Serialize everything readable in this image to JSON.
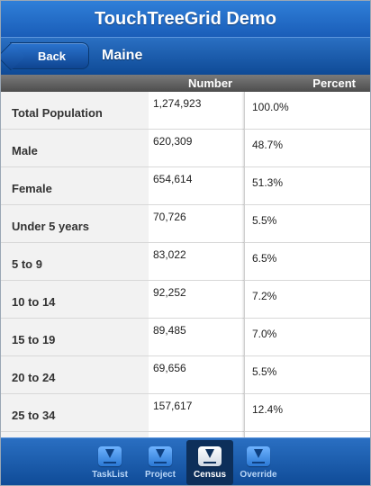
{
  "app": {
    "title": "TouchTreeGrid Demo"
  },
  "nav": {
    "back_label": "Back",
    "title": "Maine"
  },
  "columns": {
    "number": "Number",
    "percent": "Percent"
  },
  "rows": [
    {
      "label": "Total Population",
      "number": "1,274,923",
      "percent": "100.0%"
    },
    {
      "label": "Male",
      "number": "620,309",
      "percent": "48.7%"
    },
    {
      "label": "Female",
      "number": "654,614",
      "percent": "51.3%"
    },
    {
      "label": "Under 5 years",
      "number": "70,726",
      "percent": "5.5%"
    },
    {
      "label": "5 to 9",
      "number": "83,022",
      "percent": "6.5%"
    },
    {
      "label": "10 to 14",
      "number": "92,252",
      "percent": "7.2%"
    },
    {
      "label": "15 to 19",
      "number": "89,485",
      "percent": "7.0%"
    },
    {
      "label": "20 to 24",
      "number": "69,656",
      "percent": "5.5%"
    },
    {
      "label": "25 to 34",
      "number": "157,617",
      "percent": "12.4%"
    },
    {
      "label": "",
      "number": "",
      "percent": ""
    }
  ],
  "tabs": [
    {
      "label": "TaskList",
      "icon": "download-icon",
      "active": false
    },
    {
      "label": "Project",
      "icon": "download-icon",
      "active": false
    },
    {
      "label": "Census",
      "icon": "download-icon",
      "active": true
    },
    {
      "label": "Override",
      "icon": "download-icon",
      "active": false
    }
  ]
}
